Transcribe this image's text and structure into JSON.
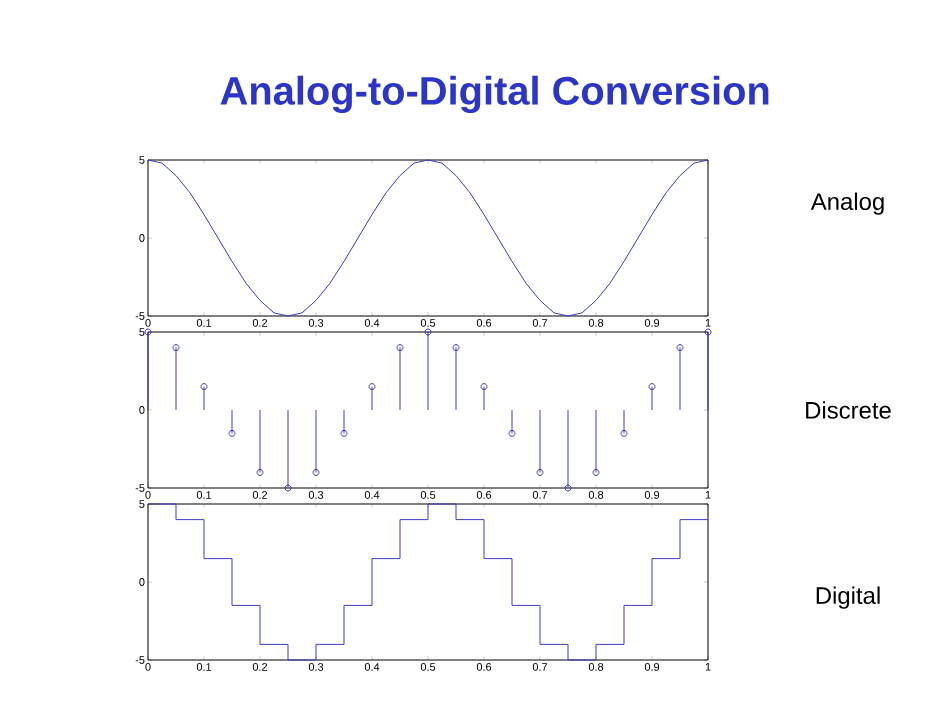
{
  "chart_data": [
    {
      "type": "line",
      "title": "Analog-to-Digital Conversion",
      "annotations": [
        "Analog"
      ],
      "color": "#3b3bc4",
      "x": [
        0,
        0.025,
        0.05,
        0.075,
        0.1,
        0.125,
        0.15,
        0.175,
        0.2,
        0.225,
        0.25,
        0.275,
        0.3,
        0.325,
        0.35,
        0.375,
        0.4,
        0.425,
        0.45,
        0.475,
        0.5,
        0.525,
        0.55,
        0.575,
        0.6,
        0.625,
        0.65,
        0.675,
        0.7,
        0.725,
        0.75,
        0.775,
        0.8,
        0.825,
        0.85,
        0.875,
        0.9,
        0.925,
        0.95,
        0.975,
        1
      ],
      "values": [
        5,
        4.8,
        4,
        2.9,
        1.5,
        0,
        -1.5,
        -2.9,
        -4,
        -4.8,
        -5,
        -4.8,
        -4,
        -2.9,
        -1.5,
        0,
        1.5,
        2.9,
        4,
        4.8,
        5,
        4.8,
        4,
        2.9,
        1.5,
        0,
        -1.5,
        -2.9,
        -4,
        -4.8,
        -5,
        -4.8,
        -4,
        -2.9,
        -1.5,
        0,
        1.5,
        2.9,
        4,
        4.8,
        5
      ],
      "xlim": [
        0,
        1
      ],
      "ylim": [
        -5,
        5
      ],
      "xticks": [
        0,
        0.1,
        0.2,
        0.3,
        0.4,
        0.5,
        0.6,
        0.7,
        0.8,
        0.9,
        1
      ],
      "yticks": [
        -5,
        0,
        5
      ]
    },
    {
      "type": "lollipop",
      "annotations": [
        "Discrete"
      ],
      "color": "#3b3bc4",
      "marker": "circle",
      "x": [
        0,
        0.05,
        0.1,
        0.15,
        0.2,
        0.25,
        0.3,
        0.35,
        0.4,
        0.45,
        0.5,
        0.55,
        0.6,
        0.65,
        0.7,
        0.75,
        0.8,
        0.85,
        0.9,
        0.95,
        1
      ],
      "values": [
        5,
        4,
        1.5,
        -1.5,
        -4,
        -5,
        -4,
        -1.5,
        1.5,
        4,
        5,
        4,
        1.5,
        -1.5,
        -4,
        -5,
        -4,
        -1.5,
        1.5,
        4,
        5
      ],
      "xlim": [
        0,
        1
      ],
      "ylim": [
        -5,
        5
      ],
      "xticks": [
        0,
        0.1,
        0.2,
        0.3,
        0.4,
        0.5,
        0.6,
        0.7,
        0.8,
        0.9,
        1
      ],
      "yticks": [
        -5,
        0,
        5
      ]
    },
    {
      "type": "step",
      "annotations": [
        "Digital"
      ],
      "color": "#3b3bc4",
      "x": [
        0,
        0.05,
        0.1,
        0.15,
        0.2,
        0.25,
        0.3,
        0.35,
        0.4,
        0.45,
        0.5,
        0.55,
        0.6,
        0.65,
        0.7,
        0.75,
        0.8,
        0.85,
        0.9,
        0.95,
        1
      ],
      "values": [
        5,
        4,
        1.5,
        -1.5,
        -4,
        -5,
        -4,
        -1.5,
        1.5,
        4,
        5,
        4,
        1.5,
        -1.5,
        -4,
        -5,
        -4,
        -1.5,
        1.5,
        4,
        4
      ],
      "xlim": [
        0,
        1
      ],
      "ylim": [
        -5,
        5
      ],
      "xticks": [
        0,
        0.1,
        0.2,
        0.3,
        0.4,
        0.5,
        0.6,
        0.7,
        0.8,
        0.9,
        1
      ],
      "yticks": [
        -5,
        0,
        5
      ]
    }
  ]
}
